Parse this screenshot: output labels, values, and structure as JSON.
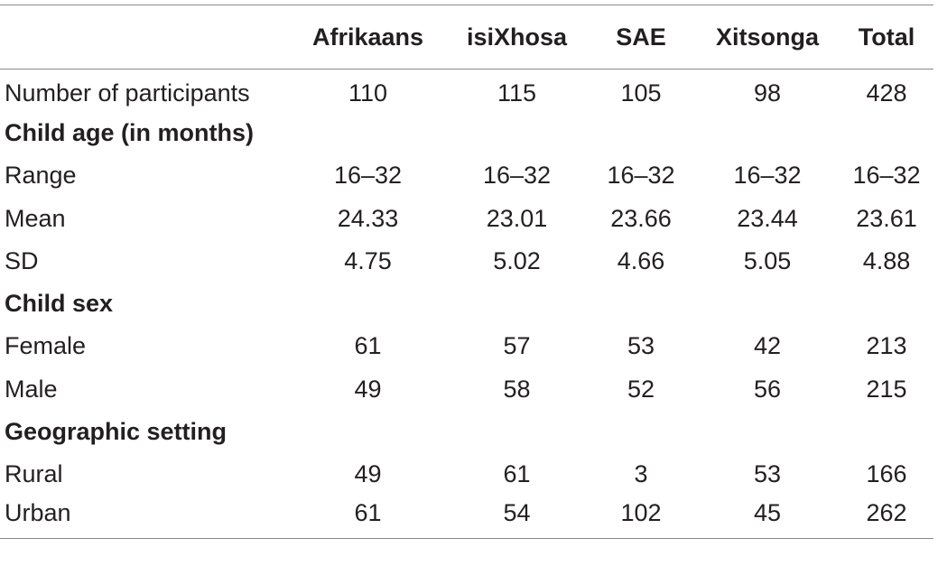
{
  "table": {
    "columns": [
      "",
      "Afrikaans",
      "isiXhosa",
      "SAE",
      "Xitsonga",
      "Total"
    ],
    "rows": [
      {
        "type": "data",
        "label": "Number of participants",
        "values": [
          "110",
          "115",
          "105",
          "98",
          "428"
        ]
      },
      {
        "type": "section",
        "label": "Child age (in months)"
      },
      {
        "type": "data",
        "label": "Range",
        "values": [
          "16–32",
          "16–32",
          "16–32",
          "16–32",
          "16–32"
        ]
      },
      {
        "type": "data",
        "label": "Mean",
        "values": [
          "24.33",
          "23.01",
          "23.66",
          "23.44",
          "23.61"
        ]
      },
      {
        "type": "data",
        "label": "SD",
        "values": [
          "4.75",
          "5.02",
          "4.66",
          "5.05",
          "4.88"
        ]
      },
      {
        "type": "section",
        "label": "Child sex"
      },
      {
        "type": "data",
        "label": "Female",
        "values": [
          "61",
          "57",
          "53",
          "42",
          "213"
        ]
      },
      {
        "type": "data",
        "label": "Male",
        "values": [
          "49",
          "58",
          "52",
          "56",
          "215"
        ]
      },
      {
        "type": "section",
        "label": "Geographic setting"
      },
      {
        "type": "data",
        "label": "Rural",
        "values": [
          "49",
          "61",
          "3",
          "53",
          "166"
        ]
      },
      {
        "type": "data",
        "label": "Urban",
        "values": [
          "61",
          "54",
          "102",
          "45",
          "262"
        ]
      }
    ]
  }
}
